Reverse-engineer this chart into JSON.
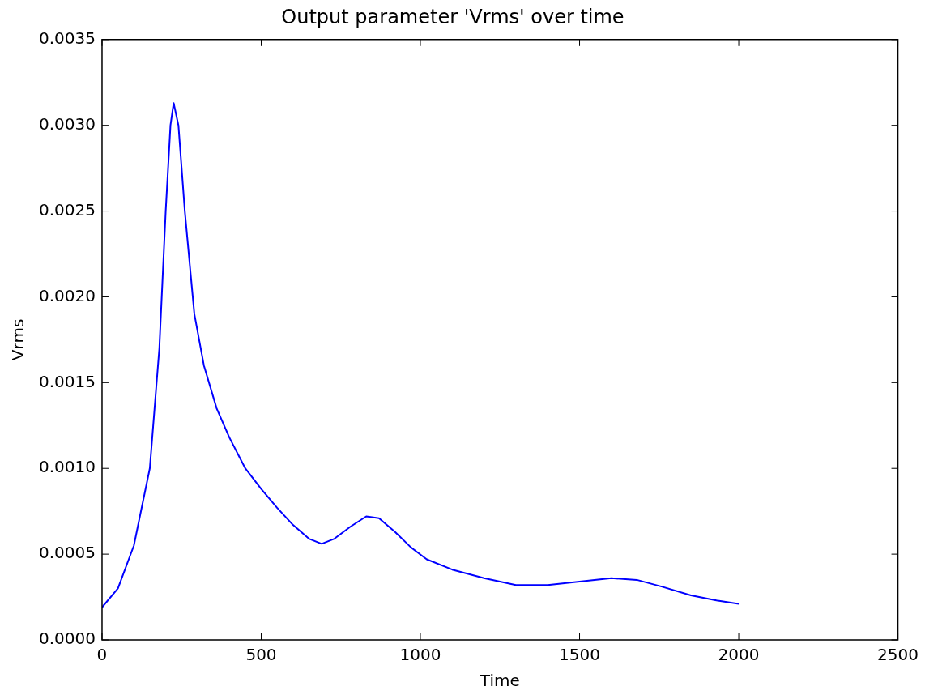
{
  "chart_data": {
    "type": "line",
    "title": "Output parameter 'Vrms' over time",
    "xlabel": "Time",
    "ylabel": "Vrms",
    "x": [
      0,
      50,
      100,
      150,
      180,
      200,
      215,
      225,
      240,
      260,
      290,
      320,
      360,
      400,
      450,
      500,
      550,
      600,
      650,
      690,
      730,
      780,
      830,
      870,
      920,
      970,
      1020,
      1100,
      1200,
      1300,
      1400,
      1500,
      1600,
      1680,
      1760,
      1850,
      1930,
      2000
    ],
    "series": [
      {
        "color": "#0000ff",
        "values": [
          0.00019,
          0.0003,
          0.00055,
          0.001,
          0.0017,
          0.0025,
          0.003,
          0.00313,
          0.003,
          0.0025,
          0.0019,
          0.0016,
          0.00135,
          0.00118,
          0.001,
          0.00088,
          0.00077,
          0.00067,
          0.00059,
          0.00056,
          0.00059,
          0.00066,
          0.00072,
          0.00071,
          0.00063,
          0.00054,
          0.00047,
          0.00041,
          0.00036,
          0.00032,
          0.00032,
          0.00034,
          0.00036,
          0.00035,
          0.00031,
          0.00026,
          0.00023,
          0.00021
        ]
      }
    ],
    "xlim": [
      0,
      2500
    ],
    "xticks": [
      0,
      500,
      1000,
      1500,
      2000,
      2500
    ],
    "ylim": [
      0,
      0.0035
    ],
    "yticks": [
      {
        "value": 0,
        "label": "0.0000"
      },
      {
        "value": 0.0005,
        "label": "0.0005"
      },
      {
        "value": 0.001,
        "label": "0.0010"
      },
      {
        "value": 0.0015,
        "label": "0.0015"
      },
      {
        "value": 0.002,
        "label": "0.0020"
      },
      {
        "value": 0.0025,
        "label": "0.0025"
      },
      {
        "value": 0.003,
        "label": "0.0030"
      },
      {
        "value": 0.0035,
        "label": "0.0035"
      }
    ],
    "grid": false,
    "legend": false,
    "marker": "none",
    "line_style": "solid"
  }
}
